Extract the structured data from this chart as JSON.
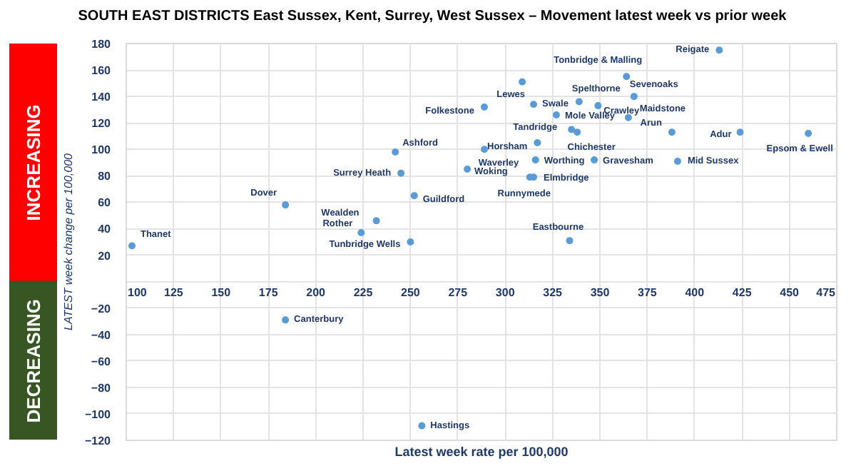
{
  "chart_data": {
    "type": "scatter",
    "title": "SOUTH EAST DISTRICTS East Sussex, Kent, Surrey, West Sussex – Movement latest week vs prior week",
    "xlabel": "Latest week rate per 100,000",
    "ylabel": "LATEST week change per 100,000",
    "x": [
      103,
      184,
      184,
      242,
      245,
      232,
      224,
      250,
      252,
      256,
      289,
      280,
      289,
      309,
      315,
      317,
      316,
      315,
      313,
      327,
      339,
      335,
      338,
      349,
      347,
      334,
      364,
      368,
      365,
      388,
      424,
      460,
      391,
      413
    ],
    "values": [
      27,
      58,
      -29,
      98,
      82,
      46,
      37,
      30,
      65,
      -109,
      100,
      85,
      132,
      151,
      134,
      105,
      92,
      79,
      79,
      126,
      136,
      115,
      113,
      133,
      92,
      31,
      155,
      140,
      124,
      113,
      113,
      112,
      91,
      175
    ],
    "value_labels": [
      "Thanet",
      "Dover",
      "Canterbury",
      "Ashford",
      "Surrey Heath",
      "Wealden",
      "Rother",
      "Tunbridge Wells",
      "Guildford",
      "Hastings",
      "Waverley",
      "Woking",
      "Folkestone",
      "Lewes",
      "Swale",
      "Horsham",
      "Worthing",
      "Elmbridge",
      "Runnymede",
      "Mole Valley",
      "Spelthorne",
      "Tandridge",
      "Chichester",
      "Crawley",
      "Gravesham",
      "Eastbourne",
      "Tonbridge & Malling",
      "Sevenoaks",
      "Maidstone",
      "Arun",
      "Adur",
      "Epsom & Ewell",
      "Mid Sussex",
      "Reigate"
    ],
    "color": "#5b9bd5",
    "marker": "circle",
    "xlim": [
      100,
      475
    ],
    "ylim": [
      -120,
      180
    ],
    "xticks": [
      100,
      125,
      150,
      175,
      200,
      225,
      250,
      275,
      300,
      325,
      350,
      375,
      400,
      425,
      450,
      475
    ],
    "yticks": [
      -120,
      -100,
      -80,
      -60,
      -40,
      -20,
      {
        "value": 0,
        "label": null
      },
      20,
      40,
      60,
      80,
      100,
      120,
      140,
      160,
      180
    ],
    "grid": true,
    "annotations": [
      "INCREASING",
      "DECREASING"
    ]
  }
}
